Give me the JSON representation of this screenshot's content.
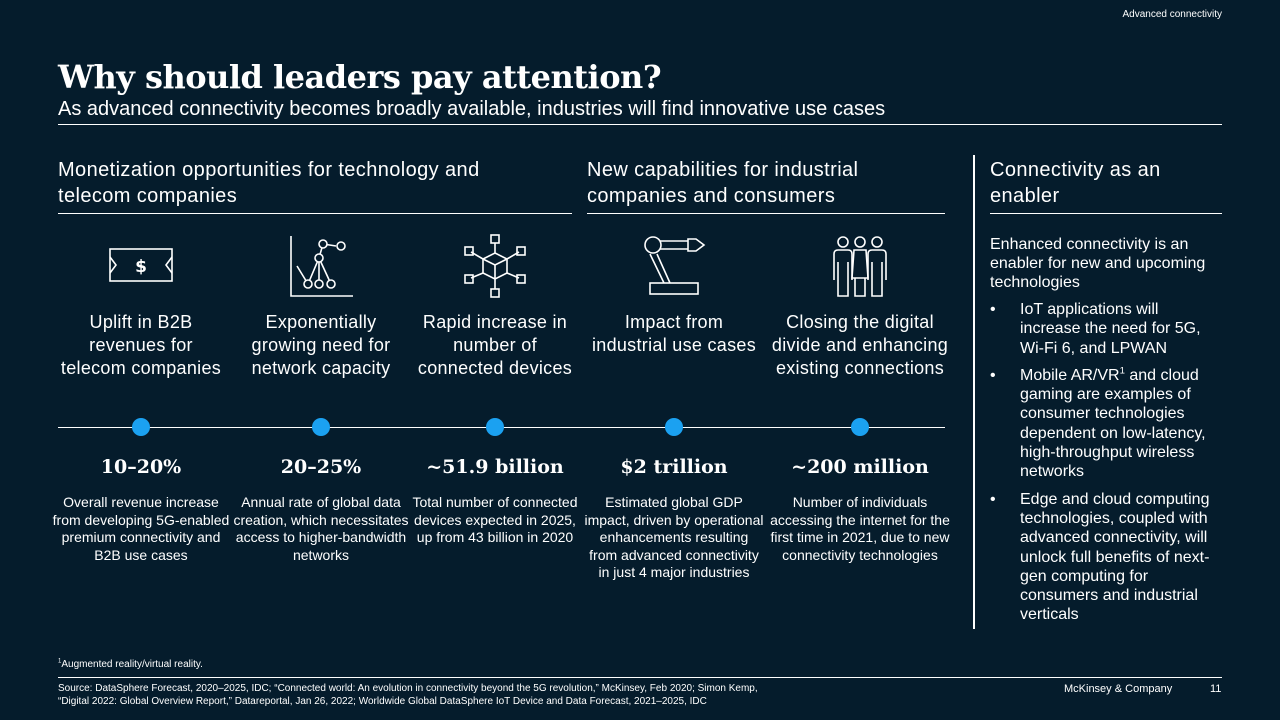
{
  "header": {
    "top_note": "Advanced connectivity",
    "title": "Why should leaders pay attention?",
    "subtitle": "As advanced connectivity becomes broadly available, industries will find innovative use cases"
  },
  "sections": {
    "monetization": "Monetization opportunities for technology and telecom companies",
    "capabilities": "New capabilities for industrial companies and consumers",
    "enabler": "Connectivity as an enabler"
  },
  "cards": [
    {
      "icon": "dollar-bill-icon",
      "label": "Uplift in B2B revenues for telecom companies",
      "stat": "10–20%",
      "desc": "Overall revenue increase from developing 5G-enabled premium connectivity and B2B use cases"
    },
    {
      "icon": "growth-chart-icon",
      "label": "Exponentially growing need for network capacity",
      "stat": "20–25%",
      "desc": "Annual rate of global data creation, which necessitates access to higher-bandwidth networks"
    },
    {
      "icon": "connected-cube-icon",
      "label": "Rapid increase in number of connected devices",
      "stat": "~51.9 billion",
      "desc": "Total number of connected devices expected in 2025, up from 43 billion in 2020"
    },
    {
      "icon": "robot-arm-icon",
      "label": "Impact from industrial use cases",
      "stat": "$2 trillion",
      "desc": "Estimated global GDP impact, driven by operational enhancements resulting from advanced connectivity in just 4 major industries"
    },
    {
      "icon": "people-group-icon",
      "label": "Closing the digital divide and enhancing existing connections",
      "stat": "~200 million",
      "desc": "Number of individuals accessing the internet for the first time in 2021, due to new connectivity technologies"
    }
  ],
  "enabler": {
    "intro": "Enhanced connectivity is an enabler for new and upcoming technologies",
    "bullet_char": "•",
    "bullet1": "IoT applications will increase the need for 5G, Wi-Fi 6, and LPWAN",
    "bullet2_pre": "Mobile AR/VR",
    "bullet2_sup": "1",
    "bullet2_post": " and cloud gaming are examples of consumer technologies dependent on low-latency, high-throughput wireless networks",
    "bullet3": "Edge and cloud computing technologies, coupled with advanced connectivity, will unlock full benefits of next-gen computing for consumers and industrial verticals"
  },
  "footer": {
    "footnote_sup": "1",
    "footnote": "Augmented reality/virtual reality.",
    "source_line1": "Source: DataSphere Forecast, 2020–2025, IDC; “Connected world: An evolution in connectivity beyond the 5G revolution,” McKinsey, Feb 2020; Simon Kemp,",
    "source_line2": "“Digital 2022: Global Overview Report,” Datareportal, Jan 26, 2022; Worldwide Global DataSphere IoT Device and Data Forecast, 2021–2025, IDC",
    "brand": "McKinsey & Company",
    "page": "11"
  },
  "colors": {
    "background": "#051c2c",
    "accent": "#1ba1f1",
    "text": "#ffffff"
  }
}
